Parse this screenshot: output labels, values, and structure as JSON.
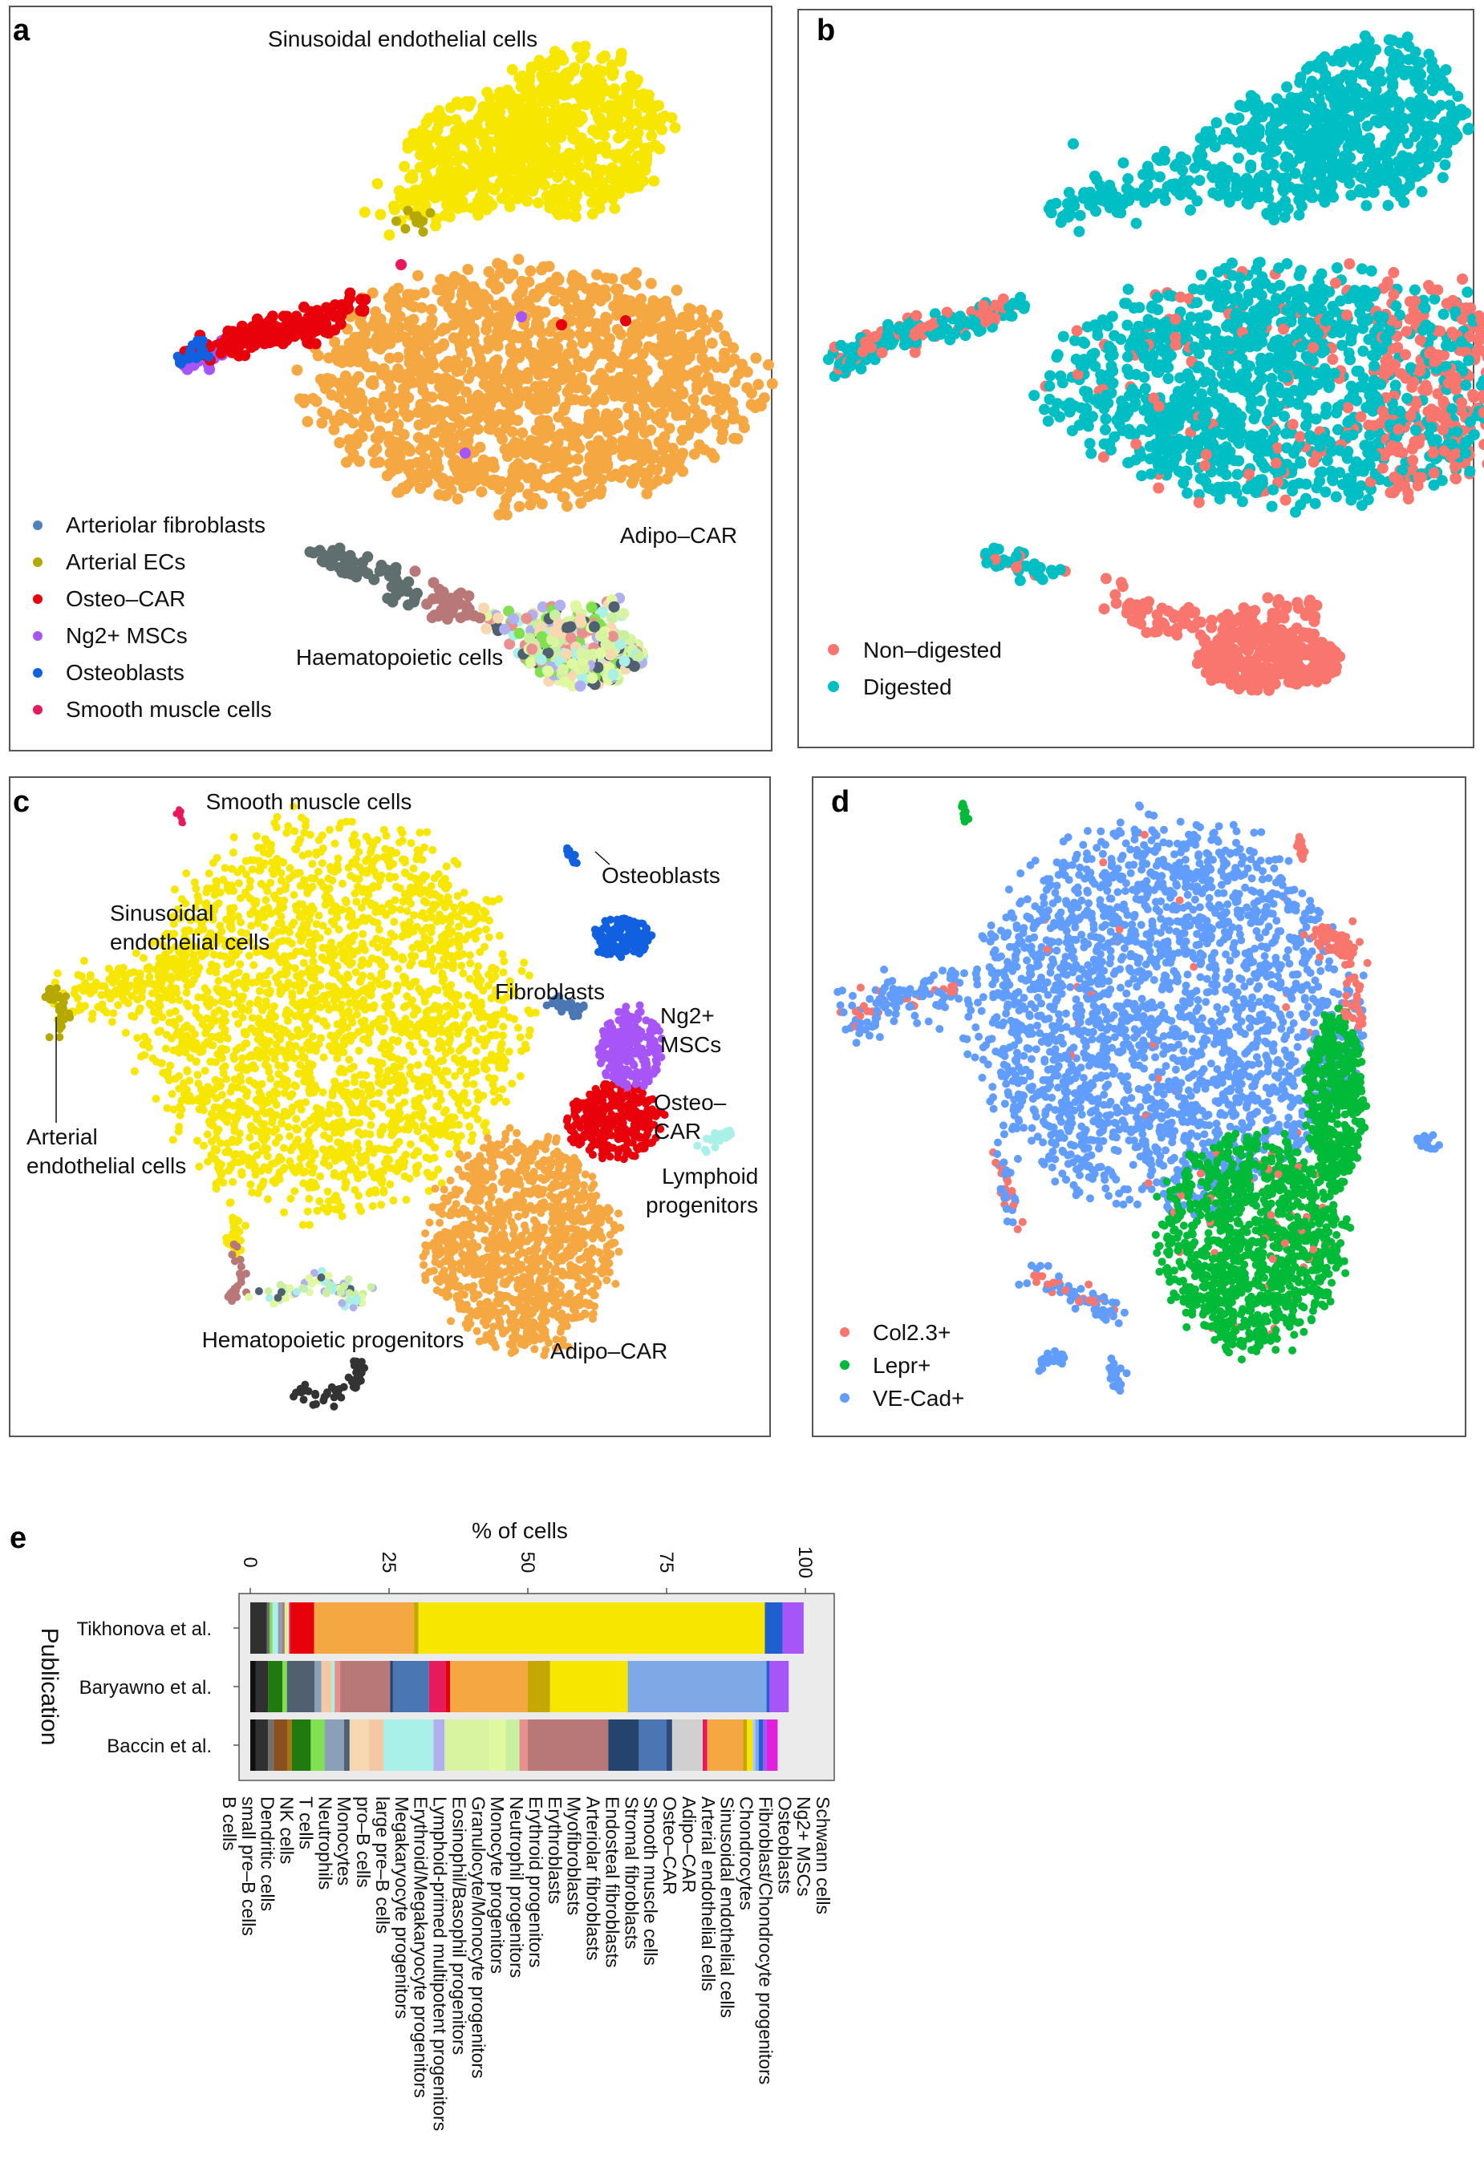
{
  "panels": {
    "a": {
      "letter": "a",
      "cluster_labels": [
        "Sinusoidal endothelial cells",
        "Adipo–CAR",
        "Haematopoietic cells"
      ],
      "legend": [
        {
          "label": "Arteriolar fibroblasts",
          "color": "#4f81bd"
        },
        {
          "label": "Arterial ECs",
          "color": "#b5a800"
        },
        {
          "label": "Osteo–CAR",
          "color": "#e8000b"
        },
        {
          "label": "Ng2+ MSCs",
          "color": "#a855f7"
        },
        {
          "label": "Osteoblasts",
          "color": "#1060e0"
        },
        {
          "label": "Smooth muscle cells",
          "color": "#e8185a"
        }
      ]
    },
    "b": {
      "letter": "b",
      "legend": [
        {
          "label": "Non–digested",
          "color": "#f8766d"
        },
        {
          "label": "Digested",
          "color": "#00bfc4"
        }
      ]
    },
    "c": {
      "letter": "c",
      "cluster_labels": [
        "Smooth muscle cells",
        "Osteoblasts",
        "Sinusoidal",
        "endothelial cells",
        "Fibroblasts",
        "Ng2+",
        "MSCs",
        "Osteo–",
        "CAR",
        "Arterial",
        "endothelial cells",
        "Lymphoid",
        "progenitors",
        "Hematopoietic progenitors",
        "Adipo–CAR"
      ]
    },
    "d": {
      "letter": "d",
      "legend": [
        {
          "label": "Col2.3+",
          "color": "#f8766d"
        },
        {
          "label": "Lepr+",
          "color": "#00ba38"
        },
        {
          "label": "VE-Cad+",
          "color": "#619cff"
        }
      ]
    },
    "e": {
      "letter": "e"
    }
  },
  "chart_data": [
    {
      "type": "scatter",
      "panel": "a",
      "title": "",
      "groups": [
        "Sinusoidal endothelial cells",
        "Adipo–CAR",
        "Haematopoietic cells",
        "Arteriolar fibroblasts",
        "Arterial ECs",
        "Osteo–CAR",
        "Ng2+ MSCs",
        "Osteoblasts",
        "Smooth muscle cells"
      ]
    },
    {
      "type": "scatter",
      "panel": "b",
      "title": "",
      "groups": [
        "Non–digested",
        "Digested"
      ]
    },
    {
      "type": "scatter",
      "panel": "c",
      "title": "",
      "groups": [
        "Sinusoidal endothelial cells",
        "Adipo–CAR",
        "Osteo–CAR",
        "Ng2+ MSCs",
        "Osteoblasts",
        "Fibroblasts",
        "Smooth muscle cells",
        "Arterial endothelial cells",
        "Lymphoid progenitors",
        "Hematopoietic progenitors"
      ]
    },
    {
      "type": "scatter",
      "panel": "d",
      "title": "",
      "groups": [
        "Col2.3+",
        "Lepr+",
        "VE-Cad+"
      ]
    },
    {
      "type": "bar",
      "panel": "e",
      "orientation": "horizontal-stacked",
      "xlabel": "% of cells",
      "ylabel": "Publication",
      "xlim": [
        0,
        100
      ],
      "xticks": [
        "0",
        "25",
        "50",
        "75",
        "100"
      ],
      "categories": [
        "Tikhonova et al.",
        "Baryawno et al.",
        "Baccin et al."
      ],
      "legend": [
        {
          "label": "Schwann cells",
          "color": "#e020e0"
        },
        {
          "label": "Ng2+ MSCs",
          "color": "#a855f7"
        },
        {
          "label": "Osteoblasts",
          "color": "#1f5fd0"
        },
        {
          "label": "Fibroblast/Chondrocyte progenitors",
          "color": "#7fa8e6"
        },
        {
          "label": "Chondrocytes",
          "color": "#a8c8f0"
        },
        {
          "label": "Sinusoidal endothelial cells",
          "color": "#f7e600"
        },
        {
          "label": "Arterial endothelial cells",
          "color": "#c4a800"
        },
        {
          "label": "Adipo–CAR",
          "color": "#f5a742"
        },
        {
          "label": "Osteo–CAR",
          "color": "#e8000b"
        },
        {
          "label": "Smooth muscle cells",
          "color": "#e81a5e"
        },
        {
          "label": "Stromal fibroblasts",
          "color": "#d0d0d0"
        },
        {
          "label": "Endosteal fibroblasts",
          "color": "#24446e"
        },
        {
          "label": "Arteriolar fibroblasts",
          "color": "#4a76b4"
        },
        {
          "label": "Myofibroblasts",
          "color": "#2f4a78"
        },
        {
          "label": "Erythroblasts",
          "color": "#b87878"
        },
        {
          "label": "Erythroid progenitors",
          "color": "#e89090"
        },
        {
          "label": "Neutrophil progenitors",
          "color": "#c8f0a0"
        },
        {
          "label": "Monocyte progenitors",
          "color": "#e0f8a0"
        },
        {
          "label": "Granulocyte/Monocyte progenitors",
          "color": "#d8f4a0"
        },
        {
          "label": "Eosinophil/Basophil progenitors",
          "color": "#b0b0f0"
        },
        {
          "label": "Lymphoid-primed multipotent progenitors",
          "color": "#a8f0e8"
        },
        {
          "label": "Erythroid/Megakaryocyte progenitors",
          "color": "#f8d8b0"
        },
        {
          "label": "Megakaryocyte progenitors",
          "color": "#f4c8a4"
        },
        {
          "label": "large pre–B cells",
          "color": "#506070"
        },
        {
          "label": "pro–B cells",
          "color": "#8aa0b8"
        },
        {
          "label": "Monocytes",
          "color": "#80e050"
        },
        {
          "label": "Neutrophils",
          "color": "#207a10"
        },
        {
          "label": "T cells",
          "color": "#a07810"
        },
        {
          "label": "NK cells",
          "color": "#8a5020"
        },
        {
          "label": "Dendritic cells",
          "color": "#707070"
        },
        {
          "label": "small pre–B cells",
          "color": "#303030"
        },
        {
          "label": "B cells",
          "color": "#101010"
        }
      ],
      "series": [
        {
          "name": "Tikhonova et al.",
          "segments": [
            {
              "label": "small pre–B cells",
              "value": 3.0
            },
            {
              "label": "Dendritic cells",
              "value": 0.5
            },
            {
              "label": "Monocytes",
              "value": 0.5
            },
            {
              "label": "Lymphoid-primed multipotent progenitors",
              "value": 1.0
            },
            {
              "label": "pro–B cells",
              "value": 0.7
            },
            {
              "label": "Erythroblasts",
              "value": 0.5
            },
            {
              "label": "Granulocyte/Monocyte progenitors",
              "value": 0.8
            },
            {
              "label": "Smooth muscle cells",
              "value": 0.3
            },
            {
              "label": "Osteo–CAR",
              "value": 4.2
            },
            {
              "label": "Adipo–CAR",
              "value": 18.0
            },
            {
              "label": "Arterial endothelial cells",
              "value": 0.8
            },
            {
              "label": "Sinusoidal endothelial cells",
              "value": 62.4
            },
            {
              "label": "Osteoblasts",
              "value": 3.2
            },
            {
              "label": "Ng2+ MSCs",
              "value": 3.8
            }
          ]
        },
        {
          "name": "Baryawno et al.",
          "segments": [
            {
              "label": "B cells",
              "value": 1.0
            },
            {
              "label": "small pre–B cells",
              "value": 2.2
            },
            {
              "label": "Neutrophils",
              "value": 2.6
            },
            {
              "label": "Monocytes",
              "value": 0.8
            },
            {
              "label": "large pre–B cells",
              "value": 5.0
            },
            {
              "label": "pro–B cells",
              "value": 1.2
            },
            {
              "label": "Megakaryocyte progenitors",
              "value": 1.8
            },
            {
              "label": "Lymphoid-primed multipotent progenitors",
              "value": 0.6
            },
            {
              "label": "Erythroid progenitors",
              "value": 1.0
            },
            {
              "label": "Erythroblasts",
              "value": 9.0
            },
            {
              "label": "Endosteal fibroblasts",
              "value": 0.5
            },
            {
              "label": "Arteriolar fibroblasts",
              "value": 6.5
            },
            {
              "label": "Smooth muscle cells",
              "value": 3.0
            },
            {
              "label": "Osteo–CAR",
              "value": 0.8
            },
            {
              "label": "Adipo–CAR",
              "value": 14.0
            },
            {
              "label": "Arterial endothelial cells",
              "value": 4.0
            },
            {
              "label": "Sinusoidal endothelial cells",
              "value": 14.0
            },
            {
              "label": "Fibroblast/Chondrocyte progenitors",
              "value": 25.0
            },
            {
              "label": "Osteoblasts",
              "value": 0.5
            },
            {
              "label": "Ng2+ MSCs",
              "value": 3.5
            }
          ]
        },
        {
          "name": "Baccin et al.",
          "segments": [
            {
              "label": "B cells",
              "value": 1.0
            },
            {
              "label": "small pre–B cells",
              "value": 2.2
            },
            {
              "label": "Dendritic cells",
              "value": 1.0
            },
            {
              "label": "NK cells",
              "value": 2.5
            },
            {
              "label": "T cells",
              "value": 0.8
            },
            {
              "label": "Neutrophils",
              "value": 3.4
            },
            {
              "label": "Monocytes",
              "value": 2.5
            },
            {
              "label": "pro–B cells",
              "value": 3.5
            },
            {
              "label": "large pre–B cells",
              "value": 1.0
            },
            {
              "label": "Erythroid/Megakaryocyte progenitors",
              "value": 3.5
            },
            {
              "label": "Megakaryocyte progenitors",
              "value": 2.6
            },
            {
              "label": "Lymphoid-primed multipotent progenitors",
              "value": 9.0
            },
            {
              "label": "Eosinophil/Basophil progenitors",
              "value": 2.0
            },
            {
              "label": "Granulocyte/Monocyte progenitors",
              "value": 8.0
            },
            {
              "label": "Monocyte progenitors",
              "value": 3.0
            },
            {
              "label": "Neutrophil progenitors",
              "value": 2.5
            },
            {
              "label": "Erythroid progenitors",
              "value": 1.5
            },
            {
              "label": "Erythroblasts",
              "value": 14.5
            },
            {
              "label": "Endosteal fibroblasts",
              "value": 5.5
            },
            {
              "label": "Arteriolar fibroblasts",
              "value": 5.0
            },
            {
              "label": "Myofibroblasts",
              "value": 1.0
            },
            {
              "label": "Stromal fibroblasts",
              "value": 5.5
            },
            {
              "label": "Smooth muscle cells",
              "value": 0.8
            },
            {
              "label": "Adipo–CAR",
              "value": 6.5
            },
            {
              "label": "Arterial endothelial cells",
              "value": 0.7
            },
            {
              "label": "Sinusoidal endothelial cells",
              "value": 1.0
            },
            {
              "label": "Chondrocytes",
              "value": 0.5
            },
            {
              "label": "Fibroblast/Chondrocyte progenitors",
              "value": 0.6
            },
            {
              "label": "Osteoblasts",
              "value": 0.8
            },
            {
              "label": "Ng2+ MSCs",
              "value": 0.6
            },
            {
              "label": "Schwann cells",
              "value": 2.0
            }
          ]
        }
      ]
    }
  ]
}
